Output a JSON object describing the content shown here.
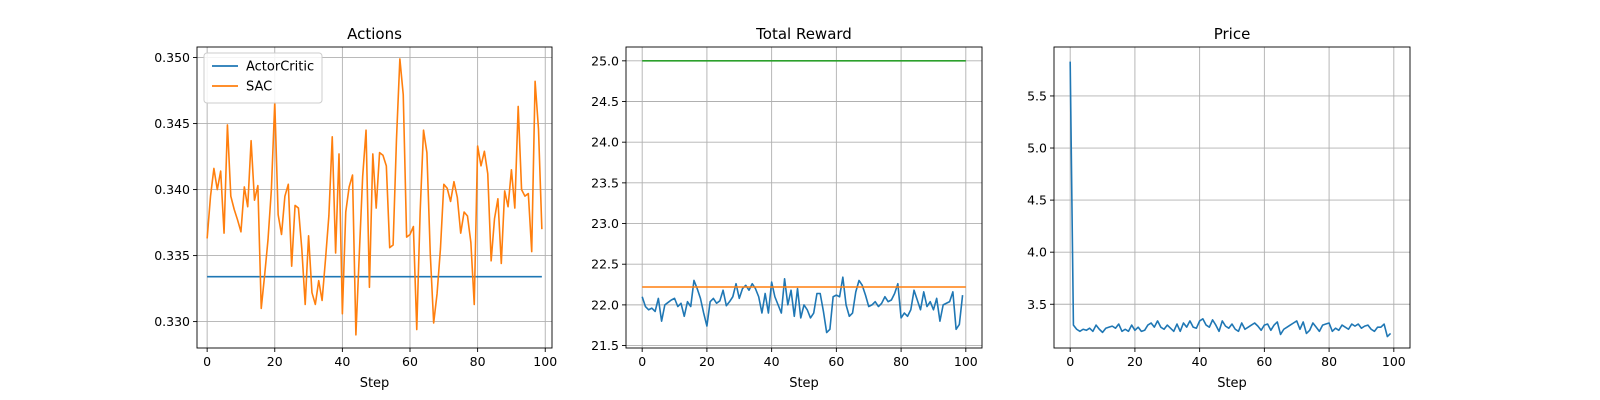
{
  "chart_data": [
    {
      "type": "line",
      "title": "Actions",
      "xlabel": "Step",
      "ylabel": "",
      "xlim": [
        -3,
        102
      ],
      "ylim": [
        0.328,
        0.3508
      ],
      "xticks": [
        0,
        20,
        40,
        60,
        80,
        100
      ],
      "yticks": [
        0.33,
        0.335,
        0.34,
        0.345,
        0.35
      ],
      "ytick_labels": [
        "0.330",
        "0.335",
        "0.340",
        "0.345",
        "0.350"
      ],
      "grid": true,
      "legend": "top-left",
      "series": [
        {
          "name": "ActorCritic",
          "color": "#1f77b4",
          "x_start": 0,
          "values": [
            0.3334,
            0.3334,
            0.3334,
            0.3334,
            0.3334,
            0.3334,
            0.3334,
            0.3334,
            0.3334,
            0.3334,
            0.3334,
            0.3334,
            0.3334,
            0.3334,
            0.3334,
            0.3334,
            0.3334,
            0.3334,
            0.3334,
            0.3334,
            0.3334,
            0.3334,
            0.3334,
            0.3334,
            0.3334,
            0.3334,
            0.3334,
            0.3334,
            0.3334,
            0.3334,
            0.3334,
            0.3334,
            0.3334,
            0.3334,
            0.3334,
            0.3334,
            0.3334,
            0.3334,
            0.3334,
            0.3334,
            0.3334,
            0.3334,
            0.3334,
            0.3334,
            0.3334,
            0.3334,
            0.3334,
            0.3334,
            0.3334,
            0.3334,
            0.3334,
            0.3334,
            0.3334,
            0.3334,
            0.3334,
            0.3334,
            0.3334,
            0.3334,
            0.3334,
            0.3334,
            0.3334,
            0.3334,
            0.3334,
            0.3334,
            0.3334,
            0.3334,
            0.3334,
            0.3334,
            0.3334,
            0.3334,
            0.3334,
            0.3334,
            0.3334,
            0.3334,
            0.3334,
            0.3334,
            0.3334,
            0.3334,
            0.3334,
            0.3334,
            0.3334,
            0.3334,
            0.3334,
            0.3334,
            0.3334,
            0.3334,
            0.3334,
            0.3334,
            0.3334,
            0.3334,
            0.3334,
            0.3334,
            0.3334,
            0.3334,
            0.3334,
            0.3334,
            0.3334,
            0.3334,
            0.3334,
            0.3334
          ]
        },
        {
          "name": "SAC",
          "color": "#ff7f0e",
          "x_start": 0,
          "values": [
            0.3363,
            0.3395,
            0.3416,
            0.34,
            0.3414,
            0.3367,
            0.3449,
            0.3395,
            0.3385,
            0.3377,
            0.3368,
            0.3402,
            0.3387,
            0.3437,
            0.3392,
            0.3403,
            0.331,
            0.3335,
            0.3362,
            0.34,
            0.3466,
            0.3381,
            0.3366,
            0.3395,
            0.3404,
            0.3342,
            0.3388,
            0.3386,
            0.3355,
            0.3313,
            0.3365,
            0.3322,
            0.3313,
            0.3331,
            0.3316,
            0.3347,
            0.338,
            0.344,
            0.3352,
            0.3427,
            0.3306,
            0.3383,
            0.3402,
            0.3411,
            0.329,
            0.3351,
            0.341,
            0.3445,
            0.3326,
            0.3427,
            0.3386,
            0.3428,
            0.3426,
            0.3418,
            0.3356,
            0.3358,
            0.3438,
            0.3499,
            0.3472,
            0.3364,
            0.3366,
            0.3372,
            0.3294,
            0.3383,
            0.3445,
            0.3428,
            0.3351,
            0.3299,
            0.3321,
            0.3355,
            0.3404,
            0.3401,
            0.3391,
            0.3406,
            0.3394,
            0.3367,
            0.3383,
            0.338,
            0.336,
            0.3313,
            0.3433,
            0.3418,
            0.3429,
            0.3412,
            0.3346,
            0.3378,
            0.3393,
            0.3344,
            0.3399,
            0.3387,
            0.3415,
            0.3386,
            0.3463,
            0.34,
            0.3395,
            0.3397,
            0.3353,
            0.3482,
            0.3446,
            0.337
          ]
        }
      ]
    },
    {
      "type": "line",
      "title": "Total Reward",
      "xlabel": "Step",
      "ylabel": "",
      "xlim": [
        -5,
        105
      ],
      "ylim": [
        21.47,
        25.17
      ],
      "xticks": [
        0,
        20,
        40,
        60,
        80,
        100
      ],
      "yticks": [
        21.5,
        22.0,
        22.5,
        23.0,
        23.5,
        24.0,
        24.5,
        25.0
      ],
      "ytick_labels": [
        "21.5",
        "22.0",
        "22.5",
        "23.0",
        "23.5",
        "24.0",
        "24.5",
        "25.0"
      ],
      "grid": true,
      "legend": "none",
      "series": [
        {
          "color": "#1f77b4",
          "x_start": 0,
          "values": [
            22.1,
            21.98,
            21.94,
            21.96,
            21.92,
            22.08,
            21.8,
            22.0,
            22.03,
            22.06,
            22.08,
            21.98,
            22.02,
            21.86,
            22.04,
            21.98,
            22.3,
            22.2,
            22.08,
            21.9,
            21.74,
            22.04,
            22.08,
            22.02,
            22.05,
            22.18,
            21.99,
            22.04,
            22.1,
            22.26,
            22.08,
            22.2,
            22.24,
            22.18,
            22.26,
            22.2,
            22.1,
            21.9,
            22.14,
            21.9,
            22.28,
            22.1,
            22.0,
            21.9,
            22.32,
            22.0,
            22.18,
            21.86,
            22.2,
            21.84,
            22.0,
            21.94,
            21.84,
            21.9,
            22.14,
            22.14,
            21.92,
            21.66,
            21.7,
            22.1,
            22.12,
            22.1,
            22.34,
            22.0,
            21.86,
            21.9,
            22.16,
            22.3,
            22.24,
            22.12,
            21.98,
            22.0,
            22.04,
            21.98,
            22.02,
            22.1,
            22.04,
            22.06,
            22.14,
            22.26,
            21.84,
            21.9,
            21.86,
            21.94,
            22.18,
            22.06,
            21.94,
            22.16,
            21.98,
            22.04,
            21.94,
            22.08,
            21.8,
            22.0,
            22.02,
            22.04,
            22.16,
            21.7,
            21.76,
            22.12
          ]
        },
        {
          "color": "#ff7f0e",
          "x_start": 0,
          "values": [
            22.22,
            22.22
          ]
        },
        {
          "color": "#2ca02c",
          "x_start": 0,
          "values": [
            25.0,
            25.0
          ]
        }
      ]
    },
    {
      "type": "line",
      "title": "Price",
      "xlabel": "Step",
      "ylabel": "",
      "xlim": [
        -5,
        105
      ],
      "ylim": [
        3.08,
        5.97
      ],
      "xticks": [
        0,
        20,
        40,
        60,
        80,
        100
      ],
      "yticks": [
        3.5,
        4.0,
        4.5,
        5.0,
        5.5
      ],
      "ytick_labels": [
        "3.5",
        "4.0",
        "4.5",
        "5.0",
        "5.5"
      ],
      "grid": true,
      "legend": "none",
      "series": [
        {
          "color": "#1f77b4",
          "x_start": 0,
          "values": [
            5.83,
            3.3,
            3.26,
            3.24,
            3.26,
            3.25,
            3.27,
            3.24,
            3.3,
            3.26,
            3.23,
            3.27,
            3.28,
            3.29,
            3.27,
            3.31,
            3.24,
            3.26,
            3.24,
            3.3,
            3.25,
            3.28,
            3.24,
            3.25,
            3.3,
            3.32,
            3.28,
            3.34,
            3.28,
            3.26,
            3.3,
            3.27,
            3.24,
            3.31,
            3.24,
            3.32,
            3.28,
            3.34,
            3.28,
            3.27,
            3.34,
            3.36,
            3.3,
            3.28,
            3.35,
            3.3,
            3.24,
            3.34,
            3.29,
            3.27,
            3.31,
            3.26,
            3.24,
            3.32,
            3.26,
            3.28,
            3.3,
            3.32,
            3.29,
            3.25,
            3.3,
            3.31,
            3.25,
            3.3,
            3.33,
            3.21,
            3.26,
            3.28,
            3.3,
            3.32,
            3.34,
            3.26,
            3.33,
            3.22,
            3.25,
            3.32,
            3.28,
            3.24,
            3.3,
            3.31,
            3.32,
            3.24,
            3.27,
            3.25,
            3.3,
            3.28,
            3.26,
            3.31,
            3.29,
            3.31,
            3.27,
            3.29,
            3.3,
            3.26,
            3.24,
            3.28,
            3.28,
            3.31,
            3.19,
            3.22
          ]
        }
      ]
    }
  ]
}
